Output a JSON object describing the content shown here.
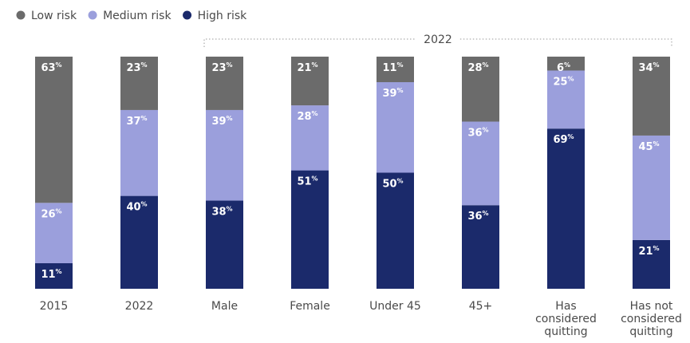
{
  "chart_data": {
    "type": "bar",
    "stacked": true,
    "categories": [
      [
        "2015"
      ],
      [
        "2022"
      ],
      [
        "Male"
      ],
      [
        "Female"
      ],
      [
        "Under 45"
      ],
      [
        "45+"
      ],
      [
        "Has",
        "considered",
        "quitting"
      ],
      [
        "Has not",
        "considered",
        "quitting"
      ]
    ],
    "series": [
      {
        "name": "High risk",
        "color": "#1b2a6b",
        "values": [
          11,
          40,
          38,
          51,
          50,
          36,
          69,
          21
        ]
      },
      {
        "name": "Medium risk",
        "color": "#9b9fdc",
        "values": [
          26,
          37,
          39,
          28,
          39,
          36,
          25,
          45
        ]
      },
      {
        "name": "Low risk",
        "color": "#6b6b6b",
        "values": [
          63,
          23,
          23,
          21,
          11,
          28,
          6,
          34
        ]
      }
    ],
    "legend": {
      "placement": "top-left",
      "order": [
        "Low risk",
        "Medium risk",
        "High risk"
      ]
    },
    "value_suffix": "%",
    "group_annotation": {
      "label": "2022",
      "from_category": 2,
      "to_category": 7
    },
    "ylim": [
      0,
      100
    ]
  }
}
